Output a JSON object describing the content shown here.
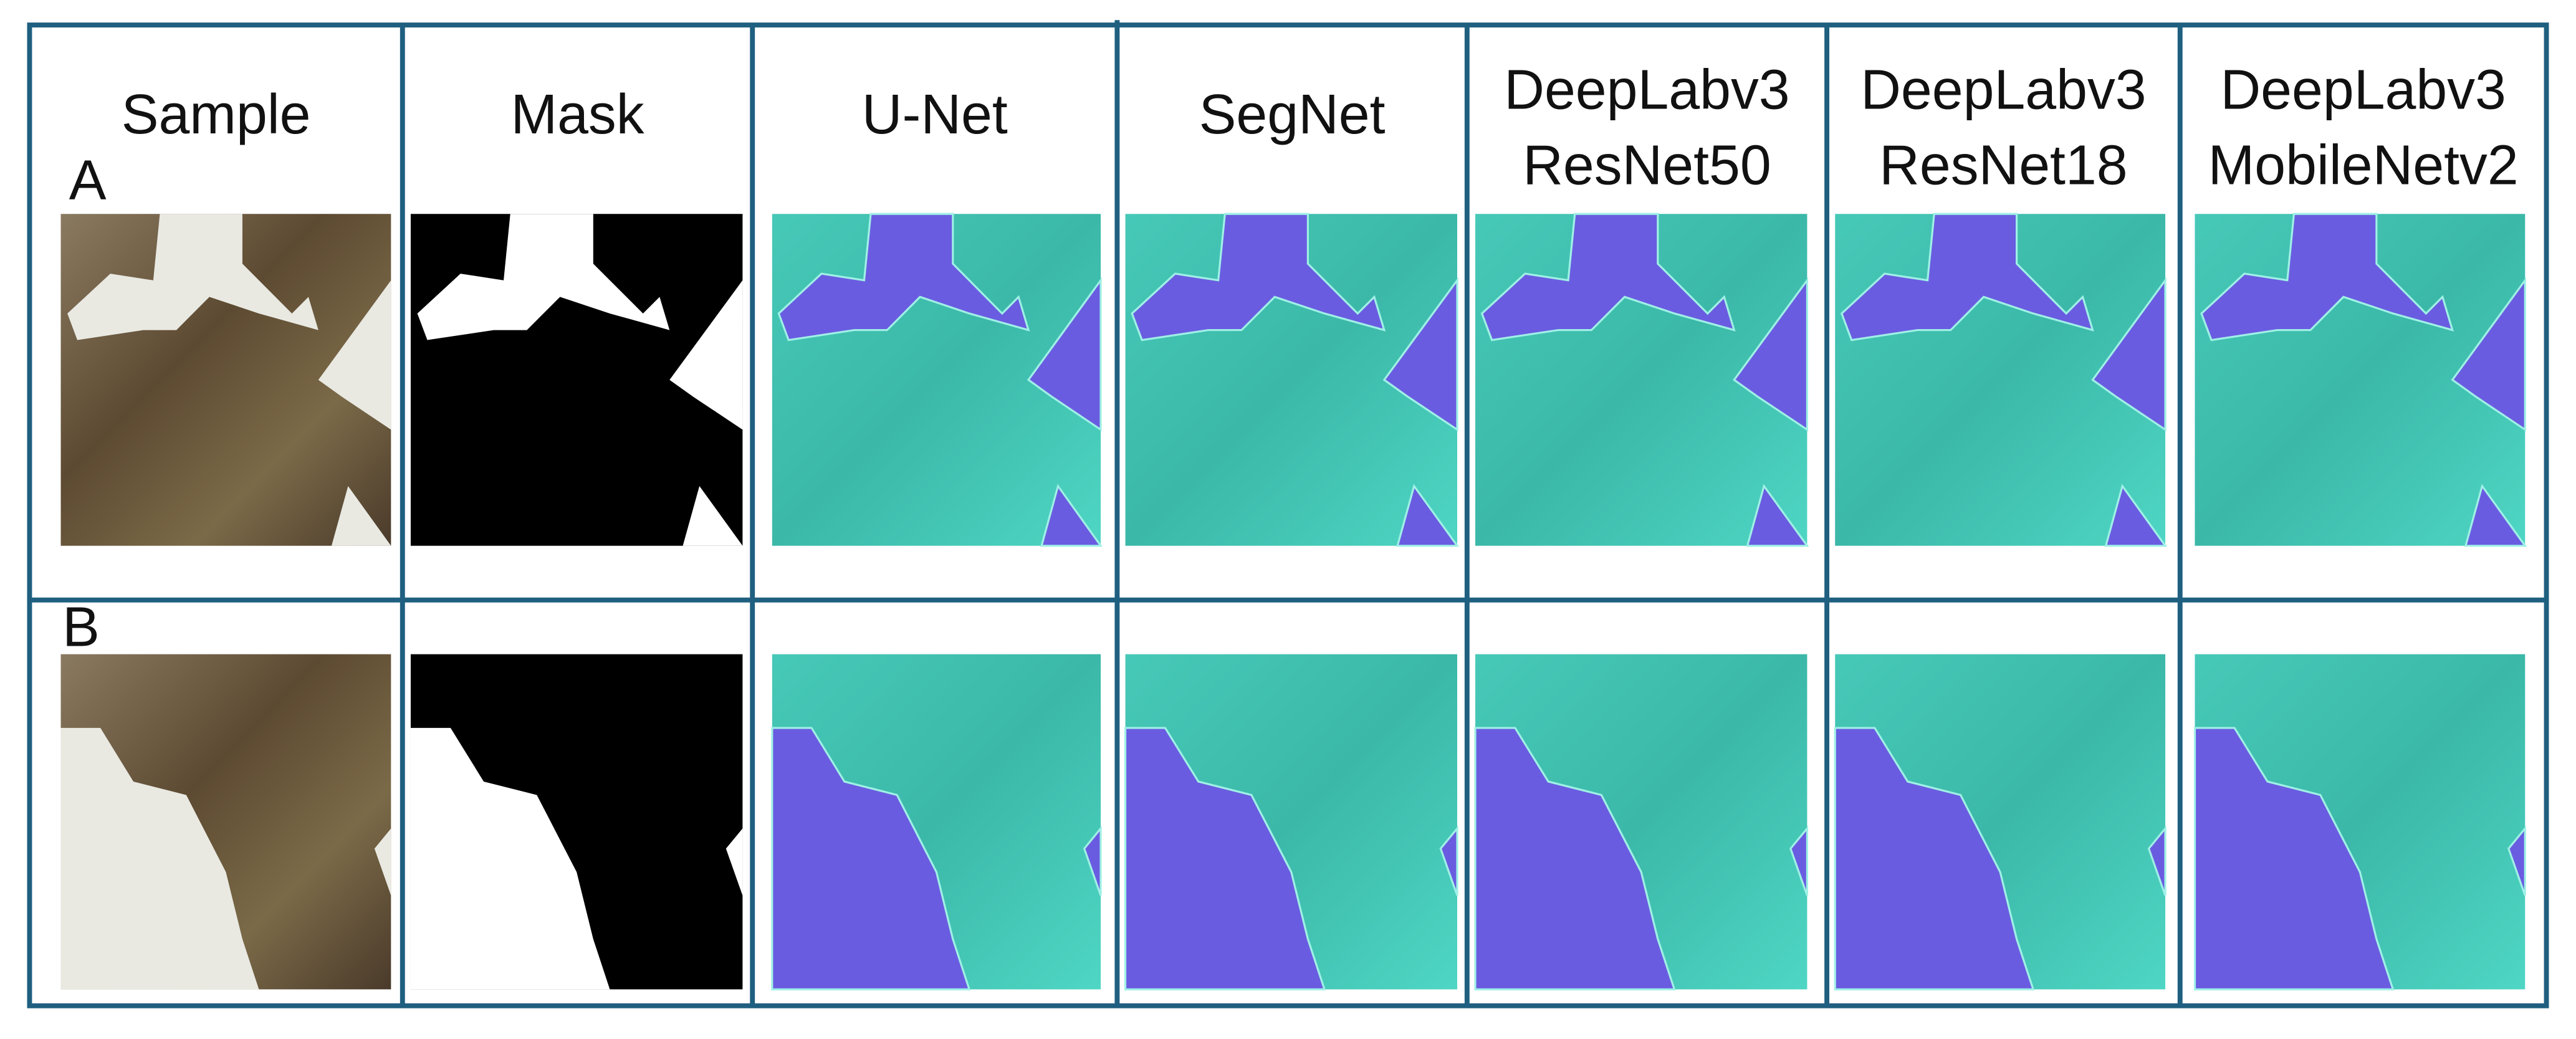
{
  "header": {
    "columns": [
      [
        "Sample"
      ],
      [
        "Mask"
      ],
      [
        "U-Net"
      ],
      [
        "SegNet"
      ],
      [
        "DeepLabv3",
        "ResNet50"
      ],
      [
        "DeepLabv3",
        "ResNet18"
      ],
      [
        "DeepLabv3",
        "MobileNetv2"
      ]
    ]
  },
  "rows": [
    {
      "label": "A"
    },
    {
      "label": "B"
    }
  ]
}
